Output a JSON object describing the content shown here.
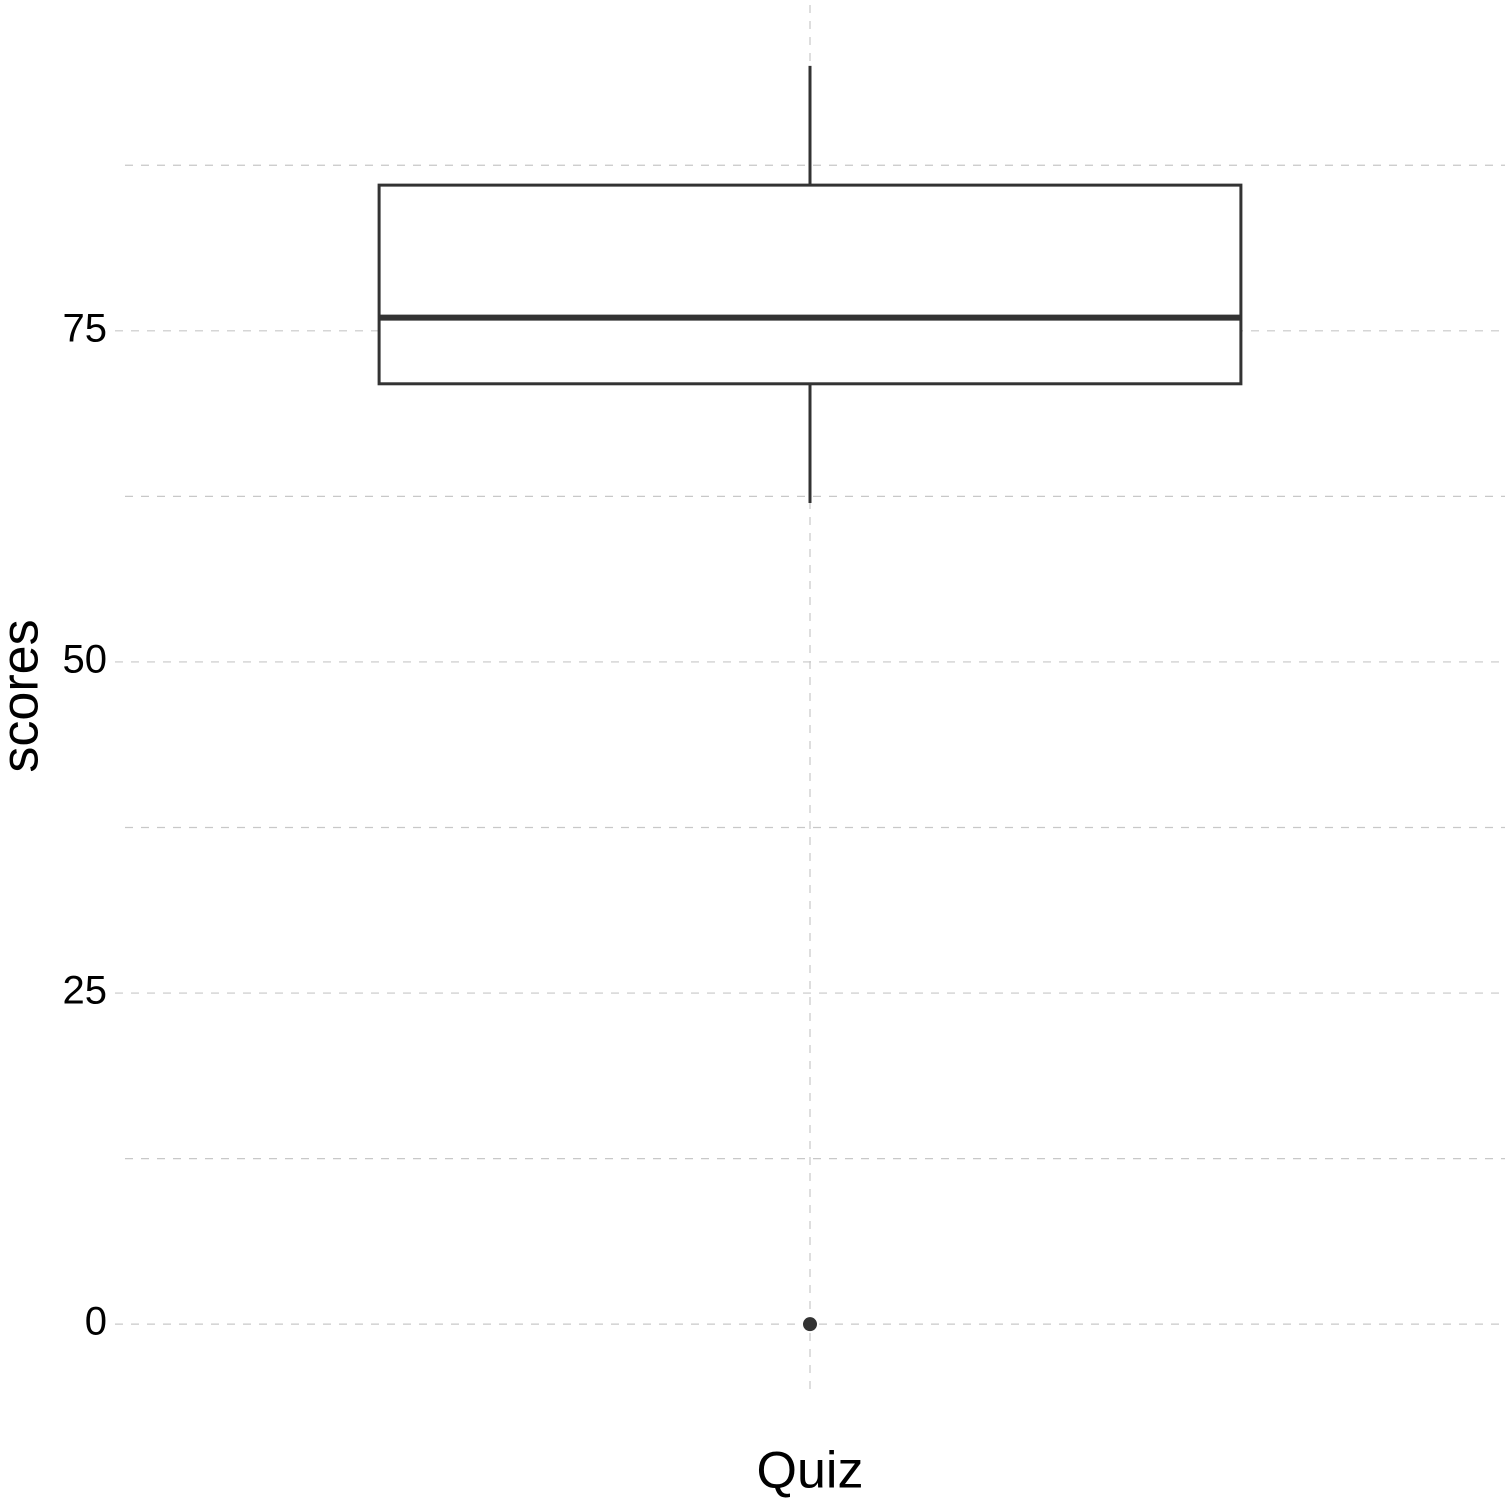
{
  "chart_data": {
    "type": "box",
    "y_label": "scores",
    "categories": [
      "Quiz"
    ],
    "boxes": [
      {
        "min": 62,
        "q1": 71,
        "median": 76,
        "q3": 86,
        "max": 95,
        "outliers": [
          0
        ]
      }
    ],
    "color": "#333333",
    "ylim": [
      -5.5,
      99.6
    ],
    "yticks": [
      0,
      25,
      50,
      75
    ],
    "y_minor_ticks": [
      12.5,
      37.5,
      62.5,
      87.5
    ],
    "grid": true
  }
}
